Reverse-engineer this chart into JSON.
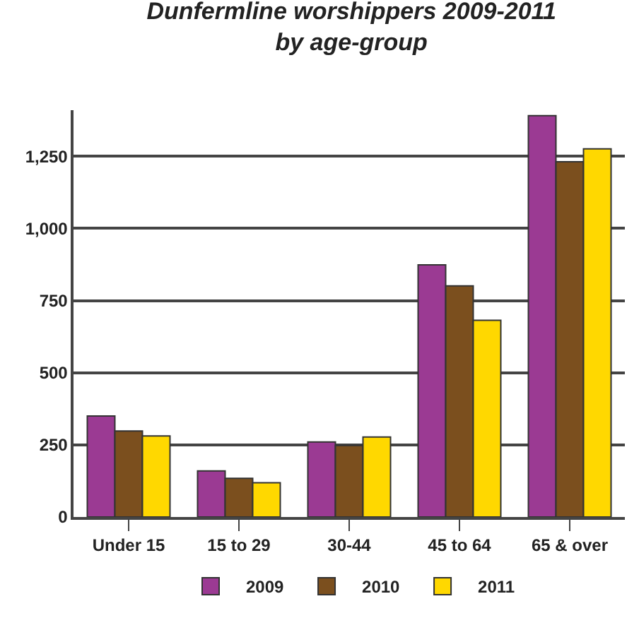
{
  "chart_data": {
    "type": "bar",
    "title": "Dunfermline worshippers 2009-2011\nby age-group",
    "categories": [
      "Under 15",
      "15 to 29",
      "30-44",
      "45 to 64",
      "65 & over"
    ],
    "series": [
      {
        "name": "2009",
        "color": "#9b3a93",
        "values": [
          350,
          160,
          260,
          874,
          1391
        ]
      },
      {
        "name": "2010",
        "color": "#7b4f1e",
        "values": [
          298,
          134,
          248,
          801,
          1231
        ]
      },
      {
        "name": "2011",
        "color": "#ffd800",
        "values": [
          281,
          119,
          277,
          682,
          1276
        ]
      }
    ],
    "ylim": [
      0,
      1410
    ],
    "yticks": [
      0,
      250,
      500,
      750,
      {
        "value": 1000,
        "label": "1,000"
      },
      {
        "value": 1250,
        "label": "1,250"
      }
    ],
    "grid": "y",
    "legend": "bottom"
  }
}
